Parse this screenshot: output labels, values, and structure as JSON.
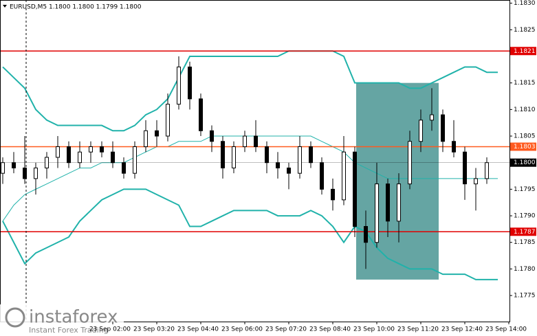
{
  "chart_data": {
    "type": "candlestick",
    "title": "EURUSD,M5  1.1800 1.1800 1.1799 1.1800",
    "categories": [
      null,
      null,
      null,
      null,
      null,
      null,
      null,
      null,
      null,
      null,
      "23 Sep 02:00",
      null,
      null,
      null,
      "23 Sep 03:20",
      null,
      null,
      null,
      "23 Sep 04:40",
      null,
      null,
      null,
      "23 Sep 06:00",
      null,
      null,
      null,
      "23 Sep 07:20",
      null,
      null,
      null,
      "23 Sep 08:40",
      null,
      null,
      null,
      "23 Sep 10:00",
      null,
      null,
      null,
      "23 Sep 11:20",
      null,
      null,
      null,
      "23 Sep 12:40",
      null,
      null,
      null,
      "23 Sep 14:00"
    ],
    "open": [
      1.1798,
      1.18,
      1.1799,
      1.1797,
      1.1799,
      1.1801,
      1.1803,
      1.18,
      1.1802,
      1.1803,
      1.1802,
      1.18,
      1.1798,
      1.1803,
      1.1806,
      1.1805,
      1.1811,
      1.1818,
      1.1812,
      1.1806,
      1.1804,
      1.1799,
      1.1803,
      1.1805,
      1.1803,
      1.18,
      1.1799,
      1.1798,
      1.1803,
      1.18,
      1.1795,
      1.1793,
      1.1802,
      1.1788,
      1.1785,
      1.1796,
      1.1789,
      1.1796,
      1.1804,
      1.1808,
      1.1809,
      1.1804,
      1.1802,
      1.1796,
      1.1797,
      null,
      null
    ],
    "high": [
      1.1801,
      1.1802,
      1.1805,
      1.18,
      1.1802,
      1.1805,
      1.1804,
      1.1804,
      1.1804,
      1.1804,
      1.1804,
      1.1801,
      1.1804,
      1.1808,
      1.1808,
      1.1813,
      1.182,
      1.1819,
      1.1813,
      1.1807,
      1.1805,
      1.1804,
      1.1806,
      1.1808,
      1.1804,
      1.1802,
      1.18,
      1.1805,
      1.1804,
      1.1801,
      1.1797,
      1.1805,
      1.1803,
      1.1791,
      1.18,
      1.1797,
      1.1798,
      1.1806,
      1.181,
      1.1814,
      1.181,
      1.1808,
      1.1803,
      1.1799,
      1.1801,
      null,
      null
    ],
    "low": [
      1.1796,
      1.1798,
      1.1796,
      1.1794,
      1.1797,
      1.1799,
      1.1799,
      1.1799,
      1.18,
      1.1801,
      1.1799,
      1.1797,
      1.1797,
      1.1802,
      1.1803,
      1.1804,
      1.181,
      1.181,
      1.1805,
      1.1802,
      1.1797,
      1.1798,
      1.1802,
      1.1802,
      1.1798,
      1.1797,
      1.1795,
      1.1797,
      1.1799,
      1.1794,
      1.1791,
      1.1792,
      1.1786,
      1.178,
      1.1784,
      1.1786,
      1.1785,
      1.1795,
      1.1802,
      1.1806,
      1.1802,
      1.1801,
      1.1793,
      1.1791,
      1.1796,
      null,
      null
    ],
    "close": [
      1.18,
      1.1799,
      1.1797,
      1.1799,
      1.1801,
      1.1803,
      1.18,
      1.1802,
      1.1803,
      1.1802,
      1.18,
      1.1798,
      1.1803,
      1.1806,
      1.1805,
      1.1811,
      1.1818,
      1.1812,
      1.1806,
      1.1804,
      1.1799,
      1.1803,
      1.1805,
      1.1803,
      1.18,
      1.1799,
      1.1798,
      1.1803,
      1.18,
      1.1795,
      1.1793,
      1.1802,
      1.1788,
      1.1785,
      1.1796,
      1.1789,
      1.1796,
      1.1804,
      1.1808,
      1.1809,
      1.1804,
      1.1802,
      1.1796,
      1.1797,
      1.18,
      null,
      null
    ],
    "candle_color": "#000000",
    "bands": {
      "color": "#20b2aa",
      "upper": [
        1.1818,
        1.1816,
        1.1814,
        1.181,
        1.1808,
        1.1807,
        1.1807,
        1.1807,
        1.1807,
        1.1807,
        1.1806,
        1.1806,
        1.1807,
        1.1809,
        1.181,
        1.1812,
        1.1816,
        1.182,
        1.182,
        1.182,
        1.182,
        1.182,
        1.182,
        1.182,
        1.182,
        1.182,
        1.1821,
        1.1821,
        1.1821,
        1.1821,
        1.1821,
        1.182,
        1.1815,
        1.1815,
        1.1815,
        1.1815,
        1.1815,
        1.1814,
        1.1814,
        1.1815,
        1.1816,
        1.1817,
        1.1818,
        1.1818,
        1.1817,
        1.1817,
        null
      ],
      "middle": [
        1.1789,
        1.1792,
        1.1794,
        1.1795,
        1.1796,
        1.1797,
        1.1798,
        1.1799,
        1.1799,
        1.18,
        1.18,
        1.18,
        1.1801,
        1.1802,
        1.1803,
        1.1803,
        1.1804,
        1.1804,
        1.1804,
        1.1805,
        1.1805,
        1.1805,
        1.1805,
        1.1805,
        1.1805,
        1.1805,
        1.1805,
        1.1805,
        1.1805,
        1.1804,
        1.1803,
        1.1802,
        1.18,
        1.1799,
        1.1798,
        1.1797,
        1.1797,
        1.1797,
        1.1797,
        1.1797,
        1.1797,
        1.1797,
        1.1797,
        1.1797,
        1.1797,
        1.1797,
        null
      ],
      "lower": [
        1.1789,
        1.1785,
        1.1781,
        1.1783,
        1.1784,
        1.1785,
        1.1786,
        1.1789,
        1.1791,
        1.1793,
        1.1794,
        1.1795,
        1.1795,
        1.1795,
        1.1794,
        1.1793,
        1.1792,
        1.1788,
        1.1788,
        1.1789,
        1.179,
        1.1791,
        1.1791,
        1.1791,
        1.1791,
        1.179,
        1.179,
        1.179,
        1.1791,
        1.179,
        1.1788,
        1.1785,
        1.1788,
        1.1787,
        1.1784,
        1.1782,
        1.1781,
        1.178,
        1.178,
        1.178,
        1.1779,
        1.1779,
        1.1779,
        1.1778,
        1.1778,
        1.1778,
        null
      ]
    },
    "levels": [
      {
        "value": 1.1821,
        "label": "1.1821",
        "color": "#e00000"
      },
      {
        "value": 1.1803,
        "label": "1.1803",
        "color": "#ff5a1f"
      },
      {
        "value": 1.1787,
        "label": "1.1787",
        "color": "#e00000"
      },
      {
        "value": 1.18,
        "label": "1.1800",
        "color": "#000000"
      }
    ],
    "highlight": {
      "categories": [
        32,
        39
      ],
      "ylim": [
        1.1778,
        1.1815
      ],
      "color": "#3f8f8c"
    },
    "ylim": [
      1.17701,
      1.18306
    ],
    "yticks": [
      1.1775,
      {
        "value": 1.178,
        "label": "1.1780"
      },
      1.1785,
      {
        "value": 1.179,
        "label": "1.1790"
      },
      1.1795,
      1.1805,
      {
        "value": 1.181,
        "label": "1.1810"
      },
      1.1815,
      1.1825,
      {
        "value": 1.183,
        "label": "1.1830"
      }
    ]
  },
  "logo": {
    "name": "instaforex",
    "tagline": "Instant Forex Trading"
  }
}
